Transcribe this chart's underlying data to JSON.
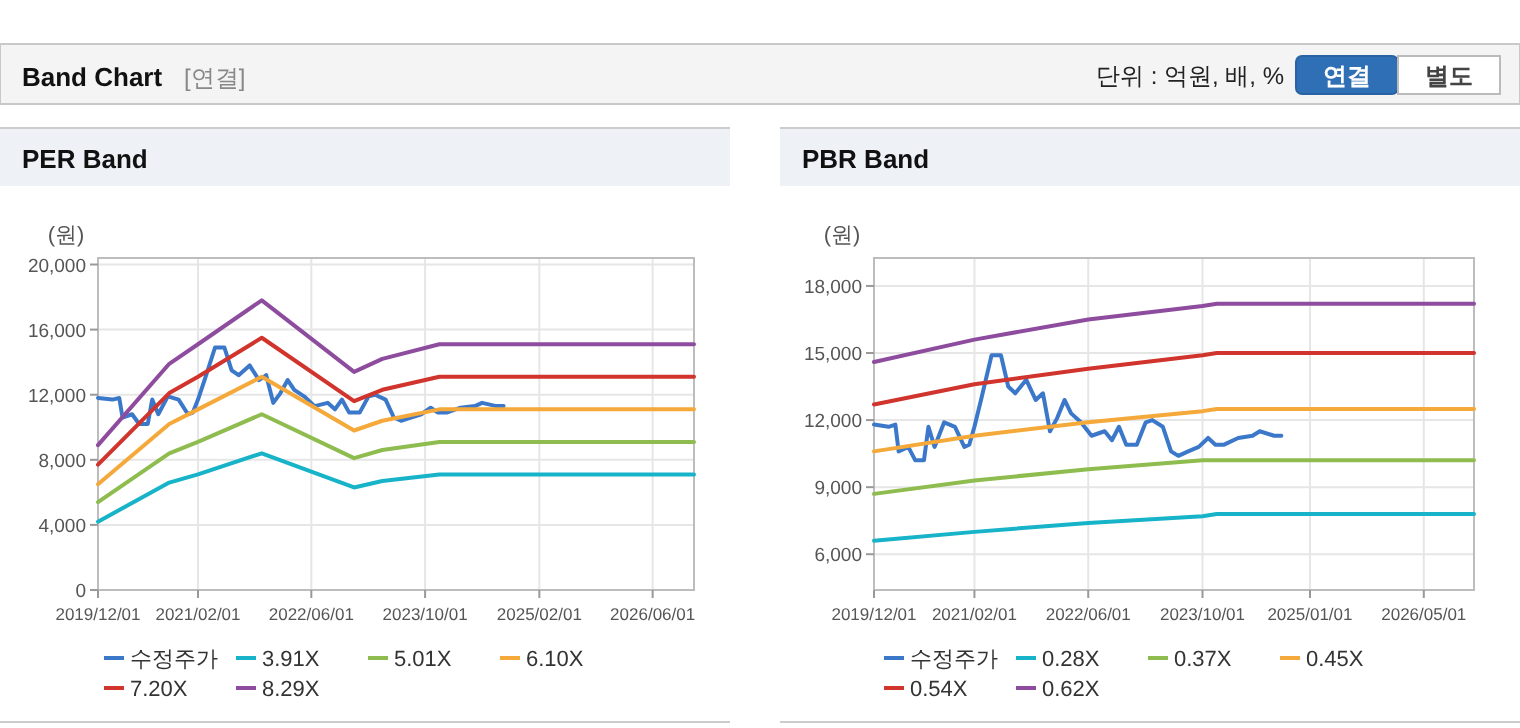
{
  "chart_data": [
    {
      "type": "other",
      "title": "Band Chart",
      "subtitle": "[연결]",
      "annotations": [
        "단위 : 억원, 배, %",
        "연결",
        "별도"
      ]
    },
    {
      "type": "line",
      "title": "PER Band",
      "ylabel": "(원)",
      "xlim": [
        "2019-12-01",
        "2026-11-25"
      ],
      "ylim": [
        0,
        20400
      ],
      "xticks": [
        {
          "value": "2019-12-01",
          "label": "2019/12/01"
        },
        {
          "value": "2021-02-01",
          "label": "2021/02/01"
        },
        {
          "value": "2022-06-01",
          "label": "2022/06/01"
        },
        {
          "value": "2023-10-01",
          "label": "2023/10/01"
        },
        {
          "value": "2025-02-01",
          "label": "2025/02/01"
        },
        {
          "value": "2026-06-01",
          "label": "2026/06/01"
        }
      ],
      "yticks": [
        {
          "value": 0,
          "label": "0"
        },
        {
          "value": 4000,
          "label": "4,000"
        },
        {
          "value": 8000,
          "label": "8,000"
        },
        {
          "value": 12000,
          "label": "12,000"
        },
        {
          "value": 16000,
          "label": "16,000"
        },
        {
          "value": 20000,
          "label": "20,000"
        }
      ],
      "grid": true,
      "legend": "bottom",
      "marker": "none",
      "line_style": "solid",
      "series": [
        {
          "name": "수정주가",
          "color": "#3b78c9",
          "x": [
            "2019-12-01",
            "2020-02-01",
            "2020-03-01",
            "2020-03-15",
            "2020-04-25",
            "2020-05-25",
            "2020-07-01",
            "2020-07-20",
            "2020-08-15",
            "2020-09-25",
            "2020-11-10",
            "2020-12-20",
            "2021-01-10",
            "2021-02-01",
            "2021-03-01",
            "2021-04-15",
            "2021-05-25",
            "2021-06-25",
            "2021-07-25",
            "2021-09-10",
            "2021-10-20",
            "2021-11-20",
            "2021-12-20",
            "2022-01-20",
            "2022-02-20",
            "2022-03-20",
            "2022-05-01",
            "2022-06-15",
            "2022-08-10",
            "2022-09-10",
            "2022-10-10",
            "2022-11-10",
            "2022-12-25",
            "2023-02-01",
            "2023-03-01",
            "2023-04-15",
            "2023-05-20",
            "2023-06-20",
            "2023-08-01",
            "2023-09-15",
            "2023-10-25",
            "2023-11-25",
            "2024-01-01",
            "2024-03-01",
            "2024-05-01",
            "2024-06-01",
            "2024-08-01",
            "2024-09-01"
          ],
          "values": [
            11800,
            11700,
            11800,
            10600,
            10800,
            10200,
            10200,
            11700,
            10800,
            11900,
            11700,
            10800,
            10900,
            11700,
            12900,
            14900,
            14900,
            13500,
            13200,
            13800,
            12900,
            13200,
            11500,
            12100,
            12900,
            12300,
            11900,
            11300,
            11500,
            11100,
            11700,
            10900,
            10900,
            11900,
            12000,
            11700,
            10600,
            10400,
            10600,
            10800,
            11200,
            10900,
            10900,
            11200,
            11300,
            11500,
            11300,
            11300
          ]
        },
        {
          "name": "3.91X",
          "color": "#17b3c8",
          "x": [
            "2019-12-01",
            "2020-10-01",
            "2021-02-01",
            "2021-11-01",
            "2022-12-01",
            "2023-04-01",
            "2023-12-01",
            "2026-11-25"
          ],
          "values": [
            4200,
            6600,
            7100,
            8400,
            6300,
            6700,
            7100,
            7100
          ]
        },
        {
          "name": "5.01X",
          "color": "#8fbc4f",
          "x": [
            "2019-12-01",
            "2020-10-01",
            "2021-02-01",
            "2021-11-01",
            "2022-12-01",
            "2023-04-01",
            "2023-12-01",
            "2026-11-25"
          ],
          "values": [
            5400,
            8400,
            9100,
            10800,
            8100,
            8600,
            9100,
            9100
          ]
        },
        {
          "name": "6.10X",
          "color": "#f5a93a",
          "x": [
            "2019-12-01",
            "2020-10-01",
            "2021-02-01",
            "2021-11-01",
            "2022-12-01",
            "2023-04-01",
            "2023-12-01",
            "2026-11-25"
          ],
          "values": [
            6500,
            10200,
            11100,
            13100,
            9800,
            10400,
            11100,
            11100
          ]
        },
        {
          "name": "7.20X",
          "color": "#d0342c",
          "x": [
            "2019-12-01",
            "2020-10-01",
            "2021-02-01",
            "2021-11-01",
            "2022-12-01",
            "2023-04-01",
            "2023-12-01",
            "2026-11-25"
          ],
          "values": [
            7700,
            12100,
            13100,
            15500,
            11600,
            12300,
            13100,
            13100
          ]
        },
        {
          "name": "8.29X",
          "color": "#8e4c9e",
          "x": [
            "2019-12-01",
            "2020-10-01",
            "2021-02-01",
            "2021-11-01",
            "2022-12-01",
            "2023-04-01",
            "2023-12-01",
            "2026-11-25"
          ],
          "values": [
            8900,
            13900,
            15100,
            17800,
            13400,
            14200,
            15100,
            15100
          ]
        }
      ]
    },
    {
      "type": "line",
      "title": "PBR Band",
      "ylabel": "(원)",
      "xlim": [
        "2019-12-01",
        "2026-12-01"
      ],
      "ylim": [
        4400,
        19250
      ],
      "xticks": [
        {
          "value": "2019-12-01",
          "label": "2019/12/01"
        },
        {
          "value": "2021-02-01",
          "label": "2021/02/01"
        },
        {
          "value": "2022-06-01",
          "label": "2022/06/01"
        },
        {
          "value": "2023-10-01",
          "label": "2023/10/01"
        },
        {
          "value": "2025-01-01",
          "label": "2025/01/01"
        },
        {
          "value": "2026-05-01",
          "label": "2026/05/01"
        }
      ],
      "yticks": [
        {
          "value": 6000,
          "label": "6,000"
        },
        {
          "value": 9000,
          "label": "9,000"
        },
        {
          "value": 12000,
          "label": "12,000"
        },
        {
          "value": 15000,
          "label": "15,000"
        },
        {
          "value": 18000,
          "label": "18,000"
        }
      ],
      "grid": true,
      "legend": "bottom",
      "marker": "none",
      "line_style": "solid",
      "series": [
        {
          "name": "수정주가",
          "color": "#3b78c9",
          "x": [
            "2019-12-01",
            "2020-02-01",
            "2020-03-01",
            "2020-03-15",
            "2020-04-25",
            "2020-05-25",
            "2020-07-01",
            "2020-07-20",
            "2020-08-15",
            "2020-09-25",
            "2020-11-10",
            "2020-12-20",
            "2021-01-10",
            "2021-02-01",
            "2021-03-01",
            "2021-04-15",
            "2021-05-25",
            "2021-06-25",
            "2021-07-25",
            "2021-09-10",
            "2021-10-20",
            "2021-11-20",
            "2021-12-20",
            "2022-01-20",
            "2022-02-20",
            "2022-03-20",
            "2022-05-01",
            "2022-06-15",
            "2022-08-10",
            "2022-09-10",
            "2022-10-10",
            "2022-11-10",
            "2022-12-25",
            "2023-02-01",
            "2023-03-01",
            "2023-04-15",
            "2023-05-20",
            "2023-06-20",
            "2023-08-01",
            "2023-09-15",
            "2023-10-25",
            "2023-11-25",
            "2024-01-01",
            "2024-03-01",
            "2024-05-01",
            "2024-06-01",
            "2024-08-01",
            "2024-09-01"
          ],
          "values": [
            11800,
            11700,
            11800,
            10600,
            10800,
            10200,
            10200,
            11700,
            10800,
            11900,
            11700,
            10800,
            10900,
            11700,
            12900,
            14900,
            14900,
            13500,
            13200,
            13800,
            12900,
            13200,
            11500,
            12100,
            12900,
            12300,
            11900,
            11300,
            11500,
            11100,
            11700,
            10900,
            10900,
            11900,
            12000,
            11700,
            10600,
            10400,
            10600,
            10800,
            11200,
            10900,
            10900,
            11200,
            11300,
            11500,
            11300,
            11300
          ]
        },
        {
          "name": "0.28X",
          "color": "#17b3c8",
          "x": [
            "2019-12-01",
            "2021-02-01",
            "2022-06-01",
            "2023-10-01",
            "2023-12-01",
            "2026-12-01"
          ],
          "values": [
            6600,
            7000,
            7400,
            7700,
            7800,
            7800
          ]
        },
        {
          "name": "0.37X",
          "color": "#8fbc4f",
          "x": [
            "2019-12-01",
            "2021-02-01",
            "2022-06-01",
            "2023-10-01",
            "2023-12-01",
            "2026-12-01"
          ],
          "values": [
            8700,
            9300,
            9800,
            10200,
            10200,
            10200
          ]
        },
        {
          "name": "0.45X",
          "color": "#f5a93a",
          "x": [
            "2019-12-01",
            "2021-02-01",
            "2022-06-01",
            "2023-10-01",
            "2023-12-01",
            "2026-12-01"
          ],
          "values": [
            10600,
            11300,
            11900,
            12400,
            12500,
            12500
          ]
        },
        {
          "name": "0.54X",
          "color": "#d0342c",
          "x": [
            "2019-12-01",
            "2021-02-01",
            "2022-06-01",
            "2023-10-01",
            "2023-12-01",
            "2026-12-01"
          ],
          "values": [
            12700,
            13600,
            14300,
            14900,
            15000,
            15000
          ]
        },
        {
          "name": "0.62X",
          "color": "#8e4c9e",
          "x": [
            "2019-12-01",
            "2021-02-01",
            "2022-06-01",
            "2023-10-01",
            "2023-12-01",
            "2026-12-01"
          ],
          "values": [
            14600,
            15600,
            16500,
            17100,
            17200,
            17200
          ]
        }
      ]
    }
  ]
}
